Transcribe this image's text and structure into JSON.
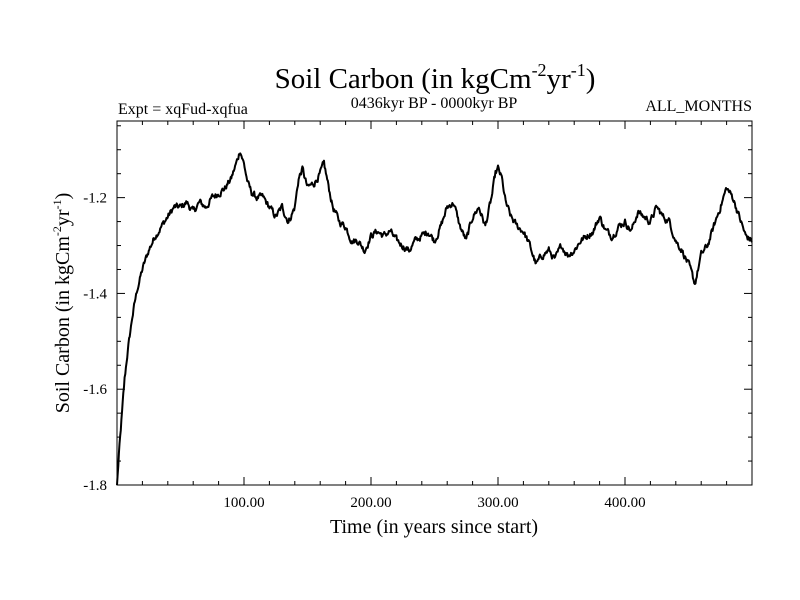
{
  "chart_data": {
    "type": "line",
    "title_main": "Soil Carbon (in kgCm",
    "title_sup1": "-2",
    "title_mid": "yr",
    "title_sup2": "-1",
    "title_end": ")",
    "subtitle_left": "Expt = xqFud-xqfua",
    "subtitle_center": "0436kyr BP - 0000kyr BP",
    "subtitle_right": "ALL_MONTHS",
    "xlabel": "Time (in years since start)",
    "ylabel_main": "Soil Carbon (in kgCm",
    "ylabel_sup1": "-2",
    "ylabel_mid": "yr",
    "ylabel_sup2": "-1",
    "ylabel_end": ")",
    "xlim": [
      0,
      500
    ],
    "ylim": [
      -1.8,
      -1.04
    ],
    "xticks": [
      {
        "value": 100,
        "label": "100.00"
      },
      {
        "value": 200,
        "label": "200.00"
      },
      {
        "value": 300,
        "label": "300.00"
      },
      {
        "value": 400,
        "label": "400.00"
      }
    ],
    "yticks": [
      {
        "value": -1.2,
        "label": "-1.2"
      },
      {
        "value": -1.4,
        "label": "-1.4"
      },
      {
        "value": -1.6,
        "label": "-1.6"
      },
      {
        "value": -1.8,
        "label": "-1.8"
      }
    ],
    "series": [
      {
        "name": "Soil Carbon",
        "color": "#000000",
        "x": [
          0,
          2,
          4,
          6,
          8,
          10,
          12,
          14,
          16,
          18,
          20,
          25,
          30,
          35,
          40,
          45,
          50,
          55,
          60,
          65,
          70,
          75,
          80,
          85,
          90,
          95,
          97,
          100,
          103,
          106,
          110,
          115,
          120,
          125,
          130,
          135,
          140,
          143,
          146,
          150,
          155,
          160,
          163,
          166,
          170,
          175,
          180,
          185,
          190,
          195,
          200,
          205,
          210,
          215,
          220,
          225,
          230,
          235,
          240,
          245,
          250,
          255,
          260,
          265,
          270,
          275,
          280,
          285,
          290,
          295,
          298,
          300,
          303,
          306,
          310,
          315,
          320,
          325,
          330,
          335,
          340,
          345,
          350,
          355,
          360,
          365,
          370,
          375,
          380,
          385,
          390,
          395,
          400,
          405,
          410,
          415,
          420,
          425,
          430,
          435,
          440,
          445,
          450,
          455,
          460,
          465,
          470,
          475,
          480,
          485,
          490,
          495,
          500
        ],
        "y": [
          -1.8,
          -1.72,
          -1.65,
          -1.58,
          -1.53,
          -1.49,
          -1.45,
          -1.42,
          -1.39,
          -1.37,
          -1.35,
          -1.31,
          -1.28,
          -1.26,
          -1.24,
          -1.22,
          -1.22,
          -1.21,
          -1.23,
          -1.21,
          -1.22,
          -1.2,
          -1.19,
          -1.18,
          -1.16,
          -1.12,
          -1.1,
          -1.13,
          -1.17,
          -1.19,
          -1.2,
          -1.2,
          -1.22,
          -1.24,
          -1.22,
          -1.25,
          -1.22,
          -1.16,
          -1.14,
          -1.18,
          -1.17,
          -1.15,
          -1.13,
          -1.17,
          -1.22,
          -1.25,
          -1.26,
          -1.29,
          -1.29,
          -1.31,
          -1.28,
          -1.27,
          -1.28,
          -1.27,
          -1.29,
          -1.3,
          -1.31,
          -1.29,
          -1.28,
          -1.27,
          -1.29,
          -1.26,
          -1.22,
          -1.21,
          -1.26,
          -1.29,
          -1.24,
          -1.22,
          -1.26,
          -1.2,
          -1.15,
          -1.14,
          -1.16,
          -1.21,
          -1.24,
          -1.26,
          -1.27,
          -1.3,
          -1.34,
          -1.32,
          -1.31,
          -1.33,
          -1.3,
          -1.32,
          -1.31,
          -1.29,
          -1.28,
          -1.27,
          -1.24,
          -1.27,
          -1.28,
          -1.26,
          -1.25,
          -1.27,
          -1.23,
          -1.24,
          -1.25,
          -1.22,
          -1.24,
          -1.25,
          -1.29,
          -1.31,
          -1.34,
          -1.38,
          -1.32,
          -1.3,
          -1.26,
          -1.22,
          -1.18,
          -1.2,
          -1.24,
          -1.28,
          -1.29
        ]
      }
    ]
  }
}
